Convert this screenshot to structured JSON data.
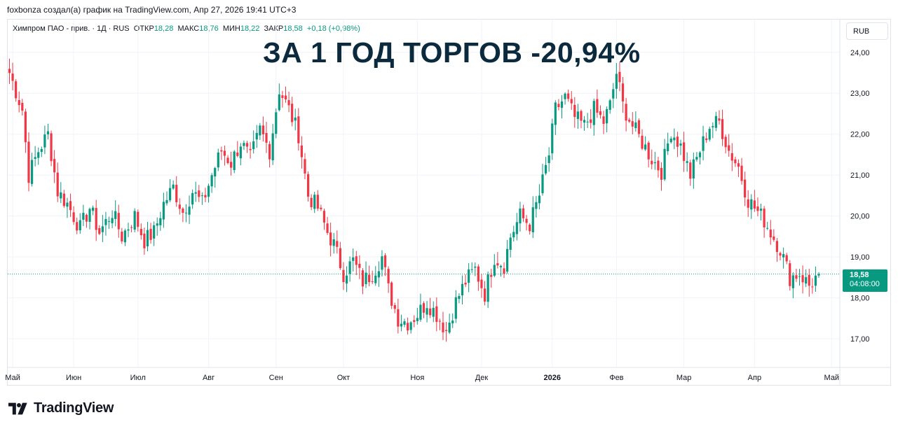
{
  "credit": "foxbonza создал(а) график на TradingView.com, Апр 27, 2026 19:41 UTC+3",
  "legend": {
    "symbol": "Химпром ПАО - прив. · 1Д · RUS",
    "open_label": "ОТКР",
    "open": "18,28",
    "high_label": "МАКС",
    "high": "18,76",
    "low_label": "МИН",
    "low": "18,22",
    "close_label": "ЗАКР",
    "close": "18,58",
    "change": "+0,18 (+0,98%)"
  },
  "currency": "RUB",
  "headline": "ЗА 1 ГОД ТОРГОВ -20,94%",
  "price_tag": {
    "price": "18,58",
    "countdown": "04:08:00"
  },
  "logo": "TradingView",
  "colors": {
    "up": "#089981",
    "down": "#f23645",
    "headline": "#0c2a3e"
  },
  "chart_data": {
    "type": "candlestick",
    "ylim": [
      16.3,
      24.8
    ],
    "y_ticks": [
      "24,00",
      "23,00",
      "22,00",
      "21,00",
      "20,00",
      "19,00",
      "18,00",
      "17,00"
    ],
    "y_tick_values": [
      24,
      23,
      22,
      21,
      20,
      19,
      18,
      17
    ],
    "x_ticks": [
      {
        "label": "Май",
        "bar": 1,
        "bold": false
      },
      {
        "label": "Июн",
        "bar": 20,
        "bold": false
      },
      {
        "label": "Июл",
        "bar": 40,
        "bold": false
      },
      {
        "label": "Авг",
        "bar": 62,
        "bold": false
      },
      {
        "label": "Сен",
        "bar": 83,
        "bold": false
      },
      {
        "label": "Окт",
        "bar": 104,
        "bold": false
      },
      {
        "label": "Ноя",
        "bar": 127,
        "bold": false
      },
      {
        "label": "Дек",
        "bar": 147,
        "bold": false
      },
      {
        "label": "2026",
        "bar": 169,
        "bold": true
      },
      {
        "label": "Фев",
        "bar": 189,
        "bold": false
      },
      {
        "label": "Мар",
        "bar": 210,
        "bold": false
      },
      {
        "label": "Апр",
        "bar": 232,
        "bold": false
      },
      {
        "label": "Май",
        "bar": 256,
        "bold": false
      }
    ],
    "last_price": 18.58,
    "close_path": [
      [
        0,
        23.5
      ],
      [
        4,
        22.6
      ],
      [
        6,
        21.0
      ],
      [
        9,
        21.6
      ],
      [
        12,
        22.0
      ],
      [
        15,
        20.6
      ],
      [
        18,
        20.3
      ],
      [
        22,
        19.7
      ],
      [
        25,
        20.2
      ],
      [
        28,
        19.6
      ],
      [
        32,
        20.1
      ],
      [
        35,
        19.5
      ],
      [
        39,
        20.0
      ],
      [
        42,
        19.4
      ],
      [
        45,
        19.6
      ],
      [
        48,
        20.3
      ],
      [
        51,
        20.7
      ],
      [
        54,
        20.1
      ],
      [
        57,
        20.6
      ],
      [
        60,
        20.3
      ],
      [
        63,
        21.0
      ],
      [
        66,
        21.6
      ],
      [
        69,
        21.3
      ],
      [
        72,
        21.8
      ],
      [
        75,
        21.4
      ],
      [
        78,
        22.1
      ],
      [
        81,
        21.6
      ],
      [
        84,
        23.1
      ],
      [
        87,
        22.6
      ],
      [
        90,
        22.0
      ],
      [
        93,
        20.5
      ],
      [
        96,
        20.2
      ],
      [
        99,
        19.6
      ],
      [
        101,
        19.3
      ],
      [
        104,
        18.6
      ],
      [
        107,
        18.9
      ],
      [
        110,
        18.4
      ],
      [
        113,
        18.6
      ],
      [
        116,
        19.0
      ],
      [
        118,
        18.2
      ],
      [
        121,
        17.5
      ],
      [
        124,
        17.4
      ],
      [
        127,
        17.6
      ],
      [
        130,
        17.9
      ],
      [
        133,
        17.6
      ],
      [
        136,
        17.2
      ],
      [
        139,
        17.9
      ],
      [
        142,
        18.4
      ],
      [
        145,
        18.7
      ],
      [
        148,
        18.1
      ],
      [
        151,
        19.0
      ],
      [
        154,
        18.8
      ],
      [
        156,
        19.5
      ],
      [
        159,
        20.0
      ],
      [
        162,
        19.8
      ],
      [
        165,
        20.5
      ],
      [
        168,
        21.5
      ],
      [
        170,
        22.6
      ],
      [
        173,
        22.9
      ],
      [
        176,
        22.4
      ],
      [
        179,
        22.2
      ],
      [
        182,
        22.6
      ],
      [
        185,
        22.3
      ],
      [
        187,
        22.7
      ],
      [
        189,
        23.5
      ],
      [
        191,
        22.7
      ],
      [
        194,
        22.2
      ],
      [
        197,
        21.8
      ],
      [
        200,
        21.4
      ],
      [
        203,
        21.1
      ],
      [
        206,
        22.1
      ],
      [
        209,
        21.7
      ],
      [
        212,
        21.0
      ],
      [
        215,
        21.6
      ],
      [
        218,
        22.2
      ],
      [
        221,
        22.3
      ],
      [
        224,
        21.6
      ],
      [
        227,
        21.2
      ],
      [
        230,
        20.4
      ],
      [
        233,
        20.1
      ],
      [
        235,
        19.9
      ],
      [
        237,
        19.6
      ],
      [
        240,
        19.2
      ],
      [
        243,
        18.5
      ],
      [
        246,
        18.6
      ],
      [
        249,
        18.3
      ],
      [
        252,
        18.58
      ]
    ],
    "bar_count": 253
  }
}
